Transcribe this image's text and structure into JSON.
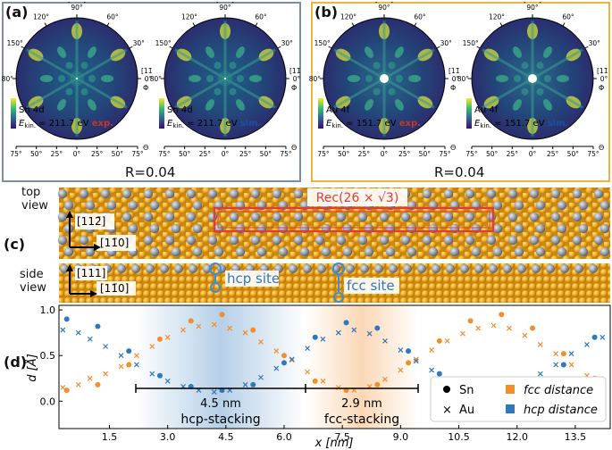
{
  "panels": {
    "a": {
      "label": "(a)",
      "frame_color": "#7d8ea3",
      "plots": [
        {
          "element": "Sn 4d",
          "ekin_symbol": "E",
          "ekin_sub": "kin.",
          "ekin_value": "= 211.7 eV",
          "tag": "exp.",
          "tag_color": "#c0392b"
        },
        {
          "element": "Sn 4d",
          "ekin_symbol": "E",
          "ekin_sub": "kin.",
          "ekin_value": "= 211.7 eV",
          "tag": "sim.",
          "tag_color": "#1f4fa0"
        }
      ],
      "r_factor": "R=0.04"
    },
    "b": {
      "label": "(b)",
      "frame_color": "#f0b43a",
      "plots": [
        {
          "element": "Au 4f",
          "ekin_symbol": "E",
          "ekin_sub": "kin.",
          "ekin_value": "= 151.7 eV",
          "tag": "exp.",
          "tag_color": "#c0392b"
        },
        {
          "element": "Au 4f",
          "ekin_symbol": "E",
          "ekin_sub": "kin.",
          "ekin_value": "= 151.7 eV",
          "tag": "sim.",
          "tag_color": "#1f4fa0"
        }
      ],
      "r_factor": "R=0.04"
    }
  },
  "polar_axes": {
    "top_dir": "[112̄]",
    "right_dir": "[11̄0]",
    "phi_ticks": [
      "90°",
      "60°",
      "30°",
      "0°",
      "150°",
      "120°",
      "180°"
    ],
    "phi_label": "Φ",
    "theta_ticks": [
      "75°",
      "50°",
      "25°",
      "0°",
      "25°",
      "50°",
      "75°"
    ],
    "theta_label": "Θ"
  },
  "panel_c": {
    "label": "(c)",
    "top_view_label_1": "top",
    "top_view_label_2": "view",
    "side_view_label_1": "side",
    "side_view_label_2": "view",
    "top_dir_y": "[112̄]",
    "top_dir_x": "[11̄0]",
    "side_dir_y": "[111]",
    "side_dir_x": "[11̄0]",
    "rec_label": "Rec(26 × √3)",
    "hcp_site": "hcp site",
    "fcc_site": "fcc site"
  },
  "panel_d": {
    "label": "(d)",
    "ylabel": "d [Å]",
    "xlabel": "x [nm]",
    "hcp_span": "4.5 nm",
    "hcp_label": "hcp-stacking",
    "fcc_span": "2.9 nm",
    "fcc_label": "fcc-stacking",
    "legend": {
      "sn": "Sn",
      "au": "Au",
      "fcc": "fcc distance",
      "hcp": "hcp distance"
    }
  },
  "colors": {
    "orange": "#f28e2b",
    "blue": "#2e78bd",
    "gold": "#e8a317",
    "red_box": "#e23b3b",
    "cyan": "#3c8fd6"
  },
  "chart_data": {
    "type": "scatter",
    "xlabel": "x [nm]",
    "ylabel": "d [Å]",
    "x_ticks": [
      "1.5",
      "3.0",
      "4.5",
      "6.0",
      "7.5",
      "9.0",
      "10.5",
      "12.0",
      "13.5"
    ],
    "y_ticks": [
      "0.0",
      "0.5",
      "1.0"
    ],
    "xlim": [
      0.2,
      14.4
    ],
    "ylim": [
      -0.3,
      1.05
    ],
    "series": [
      {
        "name": "Sn fcc distance",
        "marker": "circle",
        "color": "#f28e2b",
        "x": [
          0.4,
          1.2,
          2.0,
          2.8,
          3.6,
          4.4,
          5.2,
          6.0,
          6.8,
          7.6,
          8.4,
          9.2,
          10.0,
          10.8,
          11.6,
          12.4,
          13.2,
          14.0
        ],
        "y": [
          0.12,
          0.18,
          0.4,
          0.68,
          0.88,
          0.95,
          0.78,
          0.5,
          0.22,
          0.12,
          0.18,
          0.42,
          0.66,
          0.88,
          0.95,
          0.8,
          0.52,
          0.25
        ]
      },
      {
        "name": "Sn hcp distance",
        "marker": "circle",
        "color": "#2e78bd",
        "x": [
          0.4,
          1.2,
          2.0,
          2.8,
          3.6,
          4.4,
          5.2,
          6.0,
          6.8,
          7.6,
          8.4,
          9.2,
          10.0,
          10.8,
          11.6,
          12.4,
          13.2,
          14.0
        ],
        "y": [
          0.9,
          0.82,
          0.55,
          0.28,
          0.16,
          0.12,
          0.18,
          0.42,
          0.7,
          0.86,
          0.8,
          0.55,
          0.3,
          0.16,
          0.12,
          0.18,
          0.4,
          0.7
        ]
      },
      {
        "name": "Au fcc distance",
        "marker": "cross",
        "color": "#f28e2b",
        "x": [
          0.3,
          0.7,
          1.0,
          1.4,
          1.8,
          2.2,
          2.6,
          3.0,
          3.4,
          3.8,
          4.2,
          4.6,
          5.0,
          5.4,
          5.8,
          6.2,
          6.6,
          7.0,
          7.4,
          7.8,
          8.2,
          8.6,
          9.0,
          9.4,
          9.8,
          10.2,
          10.6,
          11.0,
          11.4,
          11.8,
          12.2,
          12.6,
          13.0,
          13.4,
          13.8,
          14.2
        ],
        "y": [
          0.15,
          0.18,
          0.25,
          0.3,
          0.38,
          0.5,
          0.6,
          0.7,
          0.78,
          0.82,
          0.84,
          0.8,
          0.75,
          0.65,
          0.55,
          0.45,
          0.32,
          0.22,
          0.15,
          0.12,
          0.16,
          0.24,
          0.34,
          0.46,
          0.56,
          0.66,
          0.74,
          0.8,
          0.83,
          0.8,
          0.72,
          0.62,
          0.52,
          0.4,
          0.28,
          0.2
        ]
      },
      {
        "name": "Au hcp distance",
        "marker": "cross",
        "color": "#2e78bd",
        "x": [
          0.3,
          0.7,
          1.0,
          1.4,
          1.8,
          2.2,
          2.6,
          3.0,
          3.4,
          3.8,
          4.2,
          4.6,
          5.0,
          5.4,
          5.8,
          6.2,
          6.6,
          7.0,
          7.4,
          7.8,
          8.2,
          8.6,
          9.0,
          9.4,
          9.8,
          10.2,
          10.6,
          11.0,
          11.4,
          11.8,
          12.2,
          12.6,
          13.0,
          13.4,
          13.8,
          14.2
        ],
        "y": [
          0.78,
          0.75,
          0.68,
          0.6,
          0.5,
          0.4,
          0.3,
          0.22,
          0.16,
          0.12,
          0.1,
          0.12,
          0.18,
          0.26,
          0.36,
          0.46,
          0.58,
          0.68,
          0.75,
          0.78,
          0.74,
          0.66,
          0.56,
          0.44,
          0.34,
          0.24,
          0.16,
          0.12,
          0.1,
          0.12,
          0.2,
          0.3,
          0.4,
          0.52,
          0.62,
          0.7
        ]
      }
    ]
  }
}
